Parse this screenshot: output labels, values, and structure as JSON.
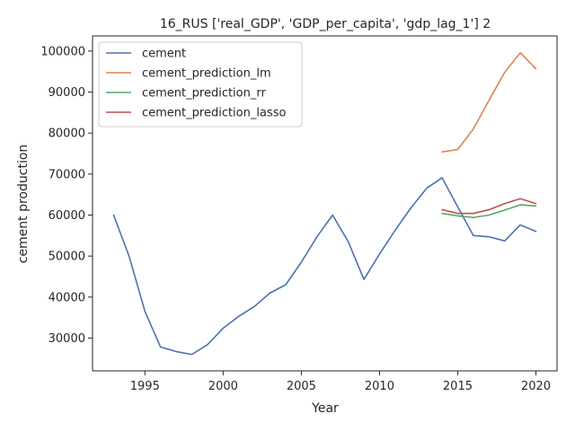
{
  "chart_data": {
    "type": "line",
    "title": "16_RUS ['real_GDP', 'GDP_per_capita', 'gdp_lag_1'] 2",
    "xlabel": "Year",
    "ylabel": "cement production",
    "xlim": [
      1991.65,
      2021.35
    ],
    "ylim": [
      22000,
      103700
    ],
    "xticks": [
      1995,
      2000,
      2005,
      2010,
      2015,
      2020
    ],
    "yticks": [
      30000,
      40000,
      50000,
      60000,
      70000,
      80000,
      90000,
      100000
    ],
    "grid": false,
    "legend_position": "upper-left",
    "series": [
      {
        "name": "cement",
        "color": "#4c72b0",
        "x": [
          1993,
          1994,
          1995,
          1996,
          1997,
          1998,
          1999,
          2000,
          2001,
          2002,
          2003,
          2004,
          2005,
          2006,
          2007,
          2008,
          2009,
          2010,
          2011,
          2012,
          2013,
          2014,
          2015,
          2016,
          2017,
          2018,
          2019,
          2020
        ],
        "y": [
          60000,
          49800,
          36500,
          27800,
          26700,
          26000,
          28400,
          32400,
          35300,
          37700,
          41000,
          43000,
          48500,
          54700,
          60000,
          53500,
          44300,
          50500,
          56300,
          61700,
          66500,
          69100,
          62000,
          55000,
          54700,
          53700,
          57600,
          56000
        ]
      },
      {
        "name": "cement_prediction_lm",
        "color": "#dd8452",
        "x": [
          2014,
          2015,
          2016,
          2017,
          2018,
          2019,
          2020
        ],
        "y": [
          75400,
          76000,
          81000,
          88000,
          94800,
          99600,
          95700
        ]
      },
      {
        "name": "cement_prediction_rr",
        "color": "#55a868",
        "x": [
          2014,
          2015,
          2016,
          2017,
          2018,
          2019,
          2020
        ],
        "y": [
          60400,
          59800,
          59400,
          60000,
          61200,
          62500,
          62200
        ]
      },
      {
        "name": "cement_prediction_lasso",
        "color": "#c44e52",
        "x": [
          2014,
          2015,
          2016,
          2017,
          2018,
          2019,
          2020
        ],
        "y": [
          61300,
          60400,
          60400,
          61300,
          62800,
          64000,
          62800
        ]
      }
    ]
  }
}
